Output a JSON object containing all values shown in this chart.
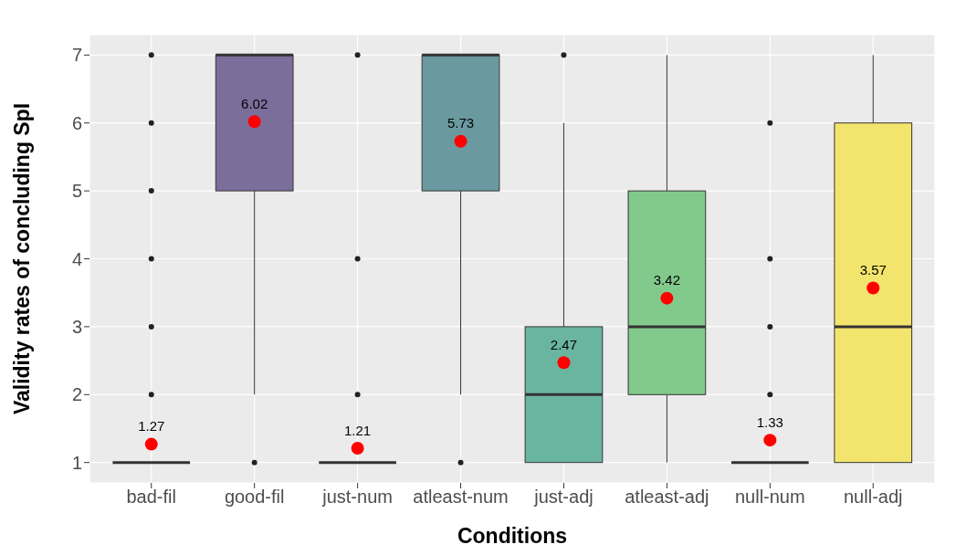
{
  "chart_data": {
    "type": "box",
    "xlabel": "Conditions",
    "ylabel": "Validity rates of concluding SpI",
    "categories": [
      "bad-fil",
      "good-fil",
      "just-num",
      "atleast-num",
      "just-adj",
      "atleast-adj",
      "null-num",
      "null-adj"
    ],
    "boxes": [
      {
        "low": 1,
        "q1": 1,
        "median": 1,
        "q3": 1,
        "high": 1,
        "outliers": [
          2,
          3,
          4,
          5,
          6,
          7
        ]
      },
      {
        "low": 2,
        "q1": 5,
        "median": 7,
        "q3": 7,
        "high": 7,
        "outliers": [
          1
        ]
      },
      {
        "low": 1,
        "q1": 1,
        "median": 1,
        "q3": 1,
        "high": 1,
        "outliers": [
          2,
          4,
          7
        ]
      },
      {
        "low": 2,
        "q1": 5,
        "median": 7,
        "q3": 7,
        "high": 7,
        "outliers": [
          1
        ]
      },
      {
        "low": 1,
        "q1": 1,
        "median": 2,
        "q3": 3,
        "high": 6,
        "outliers": [
          7
        ]
      },
      {
        "low": 1,
        "q1": 2,
        "median": 3,
        "q3": 5,
        "high": 7
      },
      {
        "low": 1,
        "q1": 1,
        "median": 1,
        "q3": 1,
        "high": 1,
        "outliers": [
          2,
          3,
          4,
          6
        ]
      },
      {
        "low": 1,
        "q1": 1,
        "median": 3,
        "q3": 6,
        "high": 7
      }
    ],
    "colors": [
      "#333333",
      "#7b6e9a",
      "#333333",
      "#6a9aa0",
      "#6ab5a0",
      "#82c98c",
      "#333333",
      "#f3e46d"
    ],
    "series": [
      {
        "type": "scatter",
        "x": [
          "bad-fil",
          "good-fil",
          "just-num",
          "atleast-num",
          "just-adj",
          "atleast-adj",
          "null-num",
          "null-adj"
        ],
        "values": [
          1.27,
          6.02,
          1.21,
          5.73,
          2.47,
          3.42,
          1.33,
          3.57
        ],
        "color": "#ff0000"
      }
    ],
    "data_labels": true,
    "ylim": [
      0.7,
      7.3
    ],
    "yticks": [
      1,
      2,
      3,
      4,
      5,
      6,
      7
    ],
    "grid": true
  }
}
